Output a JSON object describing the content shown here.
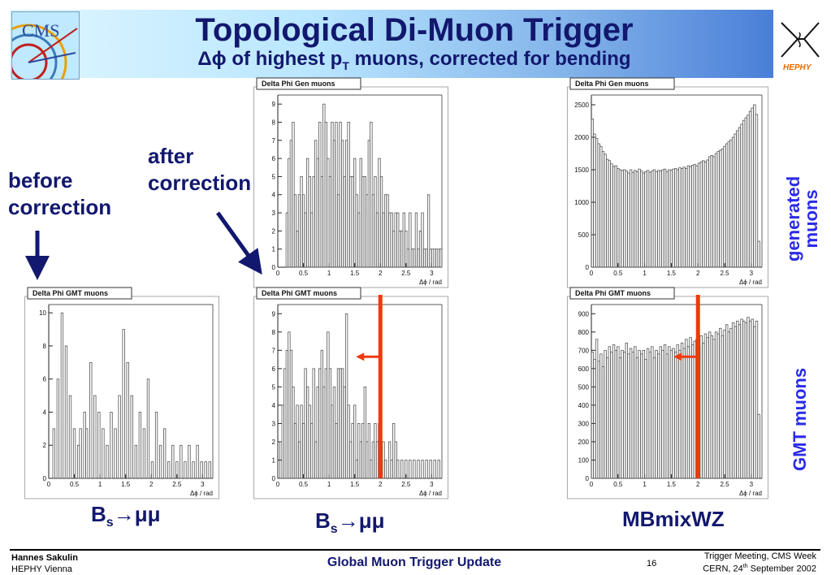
{
  "header": {
    "title": "Topological Di-Muon Trigger",
    "subtitle_prefix": "Δϕ of highest p",
    "subtitle_sub": "T",
    "subtitle_suffix": " muons, corrected for bending",
    "cms_logo_text": "CMS",
    "hephy_logo_text": "HEPHY"
  },
  "annotations": {
    "before": [
      "before",
      "correction"
    ],
    "after": [
      "after",
      "correction"
    ],
    "row_top_label": "generated muons",
    "row_top_lines": [
      "generated",
      "muons"
    ],
    "row_bottom_label": "GMT muons"
  },
  "captions": {
    "c1": {
      "main": "B",
      "sub": "s",
      "rest": "→μμ"
    },
    "c2": {
      "main": "B",
      "sub": "s",
      "rest": "→μμ"
    },
    "c3": "MBmixWZ"
  },
  "footer": {
    "author": "Hannes Sakulin",
    "institute": "HEPHY Vienna",
    "talk_title": "Global Muon Trigger Update",
    "page": "16",
    "meeting": "Trigger Meeting, CMS Week",
    "place_prefix": "CERN, 24",
    "place_sup": "th",
    "place_suffix": " September 2002"
  },
  "colors": {
    "arrow_blue": "#12186e",
    "cut_red": "#ee3a0c",
    "histo": "#555555"
  },
  "chart_data": [
    {
      "id": "gen_bs",
      "type": "histogram",
      "title": "Delta Phi Gen muons",
      "xlabel": "Δϕ / rad",
      "xlim": [
        0,
        3.2
      ],
      "ylim": [
        0,
        9.5
      ],
      "xticks": [
        0,
        0.5,
        1,
        1.5,
        2,
        2.5,
        3
      ],
      "xticklabels": [
        "0",
        "0.5",
        "1",
        "1.5",
        "2",
        "2.5",
        "3"
      ],
      "yticks": [
        0,
        1,
        2,
        3,
        4,
        5,
        6,
        7,
        8,
        9
      ],
      "yticklabels": [
        "0",
        "1",
        "2",
        "3",
        "4",
        "5",
        "6",
        "7",
        "8",
        "9"
      ],
      "bin_width": 0.04,
      "values": [
        0,
        0,
        0,
        0,
        3,
        6,
        7,
        8,
        4,
        2,
        4,
        5,
        4,
        3,
        6,
        5,
        3,
        5,
        7,
        6,
        8,
        5,
        9,
        8,
        6,
        5,
        8,
        7,
        8,
        4,
        8,
        7,
        5,
        7,
        8,
        5,
        5,
        6,
        4,
        3,
        6,
        5,
        5,
        4,
        7,
        8,
        4,
        5,
        3,
        6,
        5,
        3,
        4,
        4,
        3,
        3,
        2,
        3,
        3,
        2,
        2,
        3,
        2,
        1,
        3,
        1,
        1,
        3,
        1,
        2,
        3,
        1,
        1,
        4,
        1,
        1,
        1,
        1,
        1,
        1
      ]
    },
    {
      "id": "gen_mb",
      "type": "histogram",
      "title": "Delta Phi Gen muons",
      "xlabel": "Δϕ / rad",
      "xlim": [
        0,
        3.2
      ],
      "ylim": [
        0,
        2650
      ],
      "xticks": [
        0,
        0.5,
        1,
        1.5,
        2,
        2.5,
        3
      ],
      "xticklabels": [
        "0",
        "0.5",
        "1",
        "1.5",
        "2",
        "2.5",
        "3"
      ],
      "yticks": [
        0,
        500,
        1000,
        1500,
        2000,
        2500
      ],
      "yticklabels": [
        "0",
        "500",
        "1000",
        "1500",
        "2000",
        "2500"
      ],
      "bin_width": 0.04,
      "values": [
        2280,
        2050,
        1980,
        1900,
        1860,
        1780,
        1740,
        1660,
        1640,
        1590,
        1550,
        1560,
        1520,
        1500,
        1490,
        1500,
        1480,
        1450,
        1500,
        1460,
        1490,
        1470,
        1510,
        1480,
        1450,
        1470,
        1490,
        1460,
        1480,
        1500,
        1470,
        1490,
        1480,
        1500,
        1510,
        1470,
        1500,
        1490,
        1510,
        1520,
        1500,
        1530,
        1520,
        1540,
        1520,
        1560,
        1550,
        1570,
        1580,
        1560,
        1600,
        1620,
        1640,
        1620,
        1650,
        1700,
        1720,
        1700,
        1750,
        1780,
        1800,
        1820,
        1860,
        1900,
        1930,
        1960,
        2000,
        2050,
        2100,
        2150,
        2200,
        2260,
        2300,
        2340,
        2400,
        2450,
        2500,
        2350,
        400,
        0
      ]
    },
    {
      "id": "gmt_bs_before",
      "type": "histogram",
      "title": "Delta Phi GMT muons",
      "xlabel": "Δϕ / rad",
      "xlim": [
        0,
        3.2
      ],
      "ylim": [
        0,
        10.5
      ],
      "xticks": [
        0,
        0.5,
        1,
        1.5,
        2,
        2.5,
        3
      ],
      "xticklabels": [
        "0",
        "0.5",
        "1",
        "1.5",
        "2",
        "2.5",
        "3"
      ],
      "yticks": [
        0,
        2,
        4,
        6,
        8,
        10
      ],
      "yticklabels": [
        "0",
        "2",
        "4",
        "6",
        "8",
        "10"
      ],
      "bin_width": 0.04,
      "values": [
        0,
        0,
        3,
        0,
        6,
        0,
        10,
        0,
        8,
        0,
        5,
        0,
        3,
        0,
        2,
        3,
        0,
        4,
        3,
        0,
        7,
        0,
        5,
        0,
        4,
        0,
        3,
        0,
        2,
        0,
        4,
        0,
        3,
        0,
        5,
        0,
        9,
        0,
        7,
        0,
        5,
        0,
        2,
        0,
        4,
        0,
        3,
        0,
        6,
        0,
        1,
        0,
        4,
        0,
        2,
        0,
        3,
        0,
        1,
        0,
        2,
        0,
        1,
        0,
        2,
        0,
        1,
        0,
        2,
        0,
        1,
        0,
        2,
        0,
        1,
        0,
        1,
        0,
        1,
        0
      ]
    },
    {
      "id": "gmt_bs_after",
      "type": "histogram",
      "title": "Delta Phi GMT muons",
      "xlabel": "Δϕ / rad",
      "xlim": [
        0,
        3.2
      ],
      "ylim": [
        0,
        9.5
      ],
      "xticks": [
        0,
        0.5,
        1,
        1.5,
        2,
        2.5,
        3
      ],
      "xticklabels": [
        "0",
        "0.5",
        "1",
        "1.5",
        "2",
        "2.5",
        "3"
      ],
      "yticks": [
        0,
        1,
        2,
        3,
        4,
        5,
        6,
        7,
        8,
        9
      ],
      "yticklabels": [
        "0",
        "1",
        "2",
        "3",
        "4",
        "5",
        "6",
        "7",
        "8",
        "9"
      ],
      "bin_width": 0.04,
      "values": [
        0,
        2,
        4,
        6,
        7,
        8,
        7,
        5,
        3,
        4,
        2,
        4,
        3,
        6,
        5,
        4,
        3,
        6,
        2,
        5,
        6,
        7,
        5,
        6,
        8,
        6,
        4,
        5,
        3,
        6,
        6,
        6,
        5,
        9,
        4,
        2,
        3,
        4,
        1,
        3,
        2,
        3,
        5,
        2,
        3,
        1,
        2,
        3,
        2,
        3,
        1,
        2,
        1,
        0,
        2,
        1,
        3,
        2,
        1,
        0,
        1,
        0,
        1,
        0,
        1,
        0,
        1,
        0,
        1,
        0,
        1,
        0,
        1,
        0,
        1,
        0,
        1,
        0,
        1,
        0
      ]
    },
    {
      "id": "gmt_mb",
      "type": "histogram",
      "title": "Delta Phi GMT muons",
      "xlabel": "Δϕ / rad",
      "xlim": [
        0,
        3.2
      ],
      "ylim": [
        0,
        950
      ],
      "xticks": [
        0,
        0.5,
        1,
        1.5,
        2,
        2.5,
        3
      ],
      "xticklabels": [
        "0",
        "0.5",
        "1",
        "1.5",
        "2",
        "2.5",
        "3"
      ],
      "yticks": [
        0,
        100,
        200,
        300,
        400,
        500,
        600,
        700,
        800,
        900
      ],
      "yticklabels": [
        "0",
        "100",
        "200",
        "300",
        "400",
        "500",
        "600",
        "700",
        "800",
        "900"
      ],
      "bin_width": 0.04,
      "values": [
        690,
        650,
        760,
        640,
        680,
        610,
        700,
        660,
        720,
        690,
        730,
        700,
        720,
        660,
        700,
        690,
        740,
        680,
        710,
        690,
        720,
        660,
        700,
        680,
        700,
        650,
        710,
        690,
        720,
        660,
        700,
        680,
        720,
        700,
        730,
        680,
        720,
        700,
        710,
        690,
        730,
        700,
        740,
        710,
        760,
        720,
        770,
        730,
        750,
        760,
        720,
        780,
        740,
        790,
        770,
        800,
        780,
        760,
        800,
        790,
        820,
        780,
        810,
        840,
        800,
        820,
        850,
        830,
        860,
        840,
        870,
        860,
        850,
        880,
        860,
        870,
        830,
        860,
        350,
        0
      ]
    }
  ],
  "cuts": {
    "gmt_bs_after": 2.0,
    "gmt_mb": 2.0
  }
}
